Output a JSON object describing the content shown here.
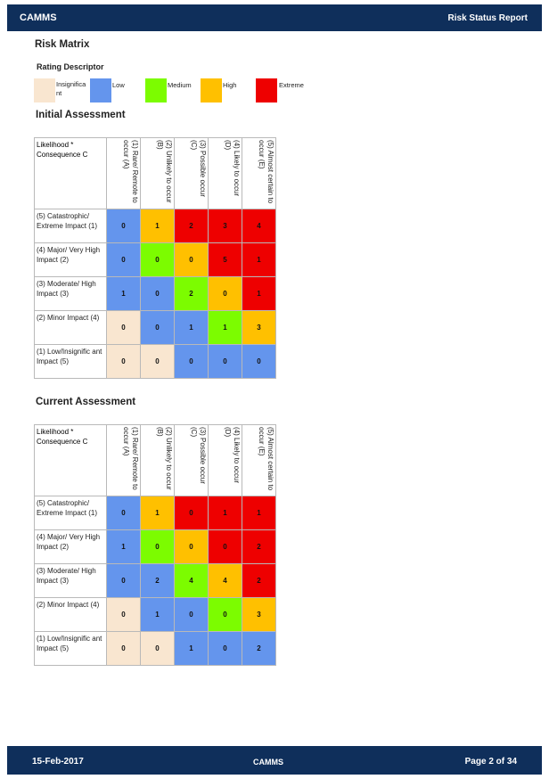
{
  "header": {
    "brand": "CAMMS",
    "report_title": "Risk Status Report"
  },
  "footer": {
    "date": "15-Feb-2017",
    "brand": "CAMMS",
    "page": "Page 2 of 34"
  },
  "section_title": "Risk Matrix",
  "rating_descriptor": {
    "label": "Rating Descriptor",
    "items": [
      {
        "label": "Insignifica nt",
        "color": "#f9e6d0"
      },
      {
        "label": "Low",
        "color": "#6495ed"
      },
      {
        "label": "Medium",
        "color": "#7cfc00"
      },
      {
        "label": "High",
        "color": "#ffc000"
      },
      {
        "label": "Extreme",
        "color": "#ee0000"
      }
    ]
  },
  "initial": {
    "title": "Initial Assessment",
    "corner": "Likelihood * Consequence C",
    "columns": [
      "(1) Rare/ Remote to occur (A)",
      "(2) Unlikely to occur (B)",
      "(3) Possible occur (C)",
      "(4) Likely to occur (D)",
      "(5) Almost certain to occur (E)"
    ],
    "rows": [
      {
        "label": "(5) Catastrophic/ Extreme Impact (1)",
        "values": [
          "0",
          "1",
          "2",
          "3",
          "4"
        ],
        "ratings": [
          "low",
          "high",
          "extreme",
          "extreme",
          "extreme"
        ]
      },
      {
        "label": "(4) Major/ Very High Impact (2)",
        "values": [
          "0",
          "0",
          "0",
          "5",
          "1"
        ],
        "ratings": [
          "low",
          "medium",
          "high",
          "extreme",
          "extreme"
        ]
      },
      {
        "label": "(3) Moderate/ High Impact (3)",
        "values": [
          "1",
          "0",
          "2",
          "0",
          "1"
        ],
        "ratings": [
          "low",
          "low",
          "medium",
          "high",
          "extreme"
        ]
      },
      {
        "label": "(2) Minor Impact (4)",
        "values": [
          "0",
          "0",
          "1",
          "1",
          "3"
        ],
        "ratings": [
          "insig",
          "low",
          "low",
          "medium",
          "high"
        ]
      },
      {
        "label": "(1) Low/Insignific ant Impact (5)",
        "values": [
          "0",
          "0",
          "0",
          "0",
          "0"
        ],
        "ratings": [
          "insig",
          "insig",
          "low",
          "low",
          "low"
        ]
      }
    ]
  },
  "current": {
    "title": "Current Assessment",
    "corner": "Likelihood * Consequence C",
    "columns": [
      "(1) Rare/ Remote to occur (A)",
      "(2) Unlikely to occur (B)",
      "(3) Possible occur (C)",
      "(4) Likely to occur (D)",
      "(5) Almost certain to occur (E)"
    ],
    "rows": [
      {
        "label": "(5) Catastrophic/ Extreme Impact (1)",
        "values": [
          "0",
          "1",
          "0",
          "1",
          "1"
        ],
        "ratings": [
          "low",
          "high",
          "extreme",
          "extreme",
          "extreme"
        ]
      },
      {
        "label": "(4) Major/ Very High Impact (2)",
        "values": [
          "1",
          "0",
          "0",
          "0",
          "2"
        ],
        "ratings": [
          "low",
          "medium",
          "high",
          "extreme",
          "extreme"
        ]
      },
      {
        "label": "(3) Moderate/ High Impact (3)",
        "values": [
          "0",
          "2",
          "4",
          "4",
          "2"
        ],
        "ratings": [
          "low",
          "low",
          "medium",
          "high",
          "extreme"
        ]
      },
      {
        "label": "(2) Minor Impact (4)",
        "values": [
          "0",
          "1",
          "0",
          "0",
          "3"
        ],
        "ratings": [
          "insig",
          "low",
          "low",
          "medium",
          "high"
        ]
      },
      {
        "label": "(1) Low/Insignific ant Impact (5)",
        "values": [
          "0",
          "0",
          "1",
          "0",
          "2"
        ],
        "ratings": [
          "insig",
          "insig",
          "low",
          "low",
          "low"
        ]
      }
    ]
  }
}
